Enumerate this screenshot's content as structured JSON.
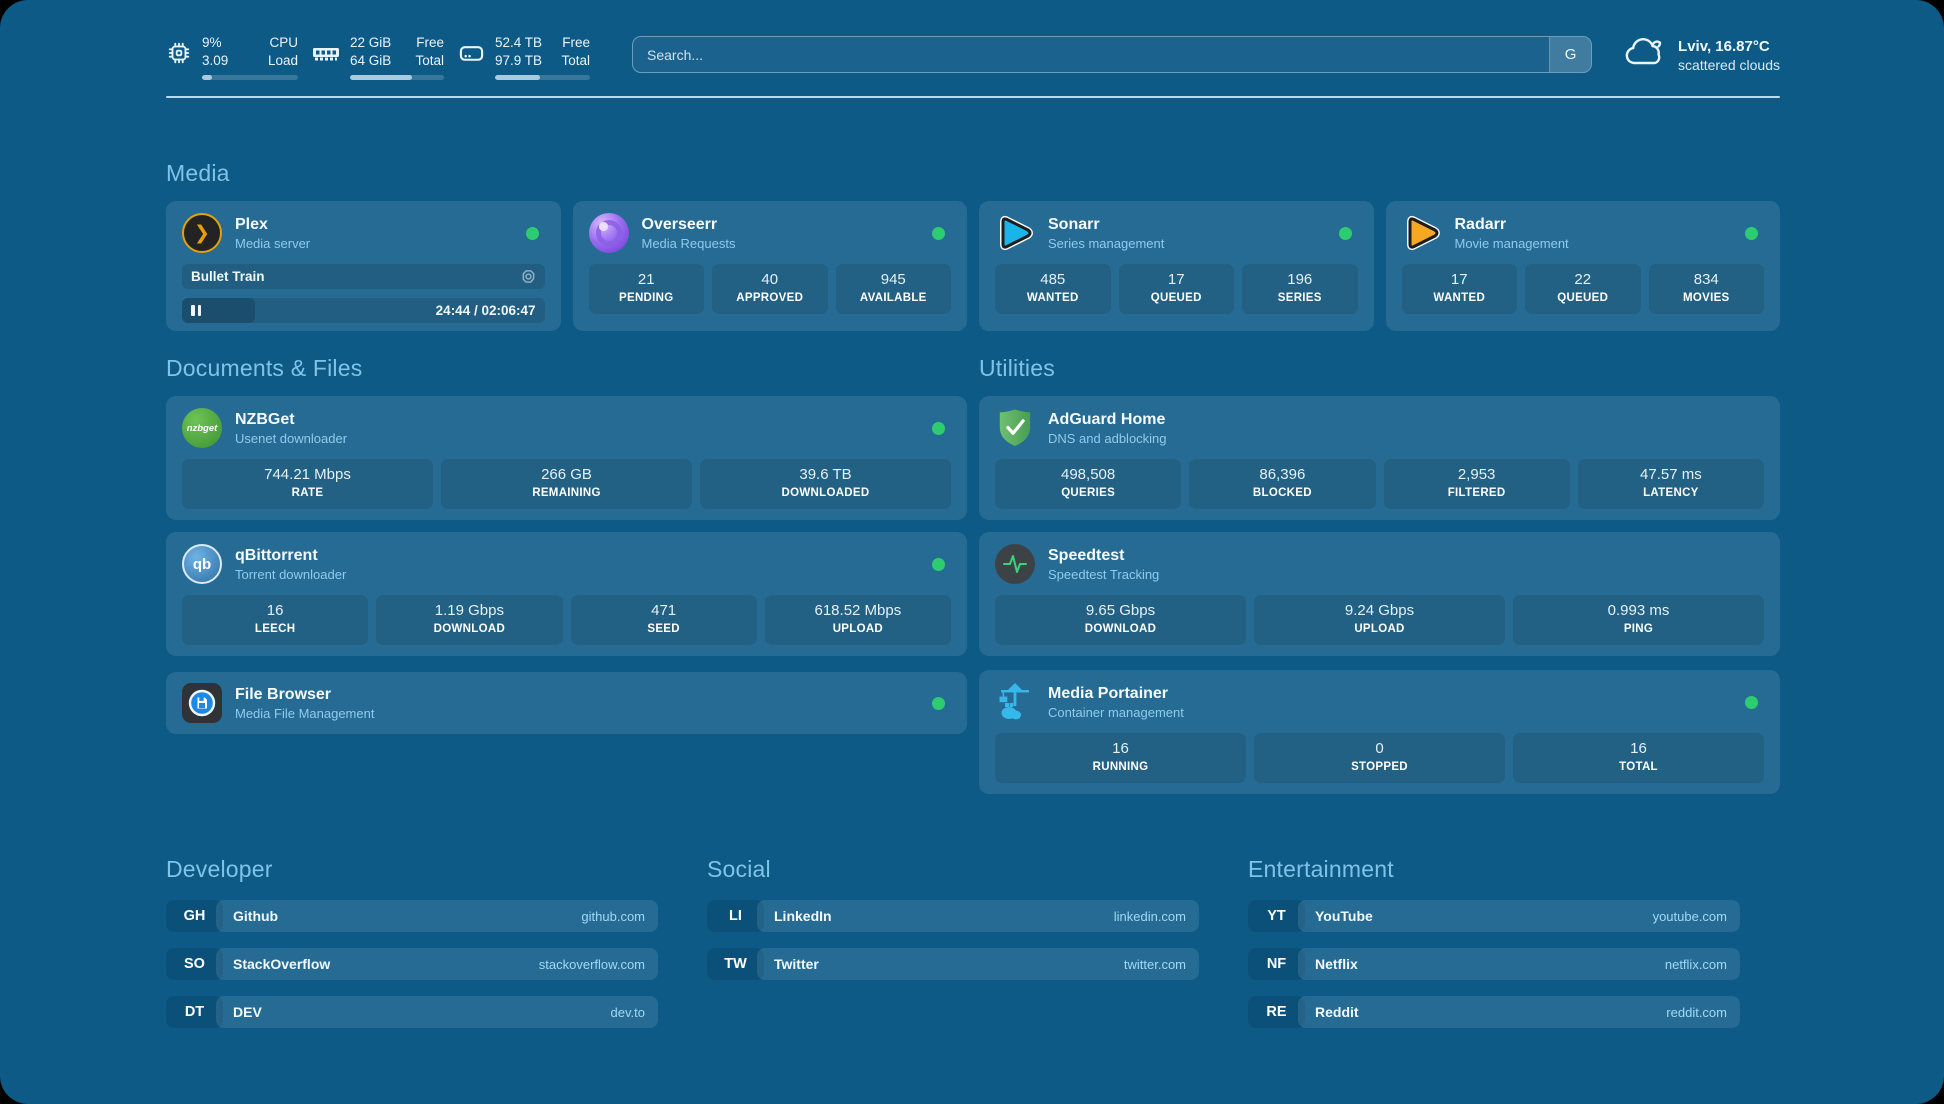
{
  "app": {
    "background_color": "#0d5a87",
    "accent_green": "#2ecc71",
    "section_title_color": "#7fc3e9"
  },
  "header": {
    "cpu": {
      "icon": "cpu-icon",
      "value_top": "9%",
      "value_bottom": "3.09",
      "label_top": "CPU",
      "label_bottom": "Load",
      "progress_pct": 10
    },
    "memory": {
      "icon": "memory-icon",
      "value_top": "22 GiB",
      "value_bottom": "64 GiB",
      "label_top": "Free",
      "label_bottom": "Total",
      "progress_pct": 66
    },
    "disk": {
      "icon": "disk-icon",
      "value_top": "52.4 TB",
      "value_bottom": "97.9 TB",
      "label_top": "Free",
      "label_bottom": "Total",
      "progress_pct": 47
    },
    "search": {
      "placeholder": "Search...",
      "button_label": "G"
    },
    "weather": {
      "icon": "cloud-icon",
      "location": "Lviv, 16.87°C",
      "condition": "scattered clouds"
    }
  },
  "sections": {
    "media": "Media",
    "documents": "Documents & Files",
    "utilities": "Utilities",
    "developer": "Developer",
    "social": "Social",
    "entertainment": "Entertainment"
  },
  "services": {
    "plex": {
      "icon": "plex-icon",
      "title": "Plex",
      "subtitle": "Media server",
      "online": true,
      "now_playing": "Bullet Train",
      "state": "paused",
      "elapsed": "24:44",
      "duration": "02:06:47",
      "time_display": "24:44 / 02:06:47",
      "progress_pct": 20
    },
    "overseerr": {
      "icon": "overseerr-icon",
      "title": "Overseerr",
      "subtitle": "Media Requests",
      "online": true,
      "stats": [
        {
          "value": "21",
          "label": "PENDING"
        },
        {
          "value": "40",
          "label": "APPROVED"
        },
        {
          "value": "945",
          "label": "AVAILABLE"
        }
      ]
    },
    "sonarr": {
      "icon": "sonarr-icon",
      "title": "Sonarr",
      "subtitle": "Series management",
      "online": true,
      "stats": [
        {
          "value": "485",
          "label": "WANTED"
        },
        {
          "value": "17",
          "label": "QUEUED"
        },
        {
          "value": "196",
          "label": "SERIES"
        }
      ]
    },
    "radarr": {
      "icon": "radarr-icon",
      "title": "Radarr",
      "subtitle": "Movie management",
      "online": true,
      "stats": [
        {
          "value": "17",
          "label": "WANTED"
        },
        {
          "value": "22",
          "label": "QUEUED"
        },
        {
          "value": "834",
          "label": "MOVIES"
        }
      ]
    },
    "nzbget": {
      "icon": "nzbget-icon",
      "icon_text": "nzbget",
      "title": "NZBGet",
      "subtitle": "Usenet downloader",
      "online": true,
      "stats": [
        {
          "value": "744.21 Mbps",
          "label": "RATE"
        },
        {
          "value": "266 GB",
          "label": "REMAINING"
        },
        {
          "value": "39.6 TB",
          "label": "DOWNLOADED"
        }
      ]
    },
    "qbittorrent": {
      "icon": "qbittorrent-icon",
      "icon_text": "qb",
      "title": "qBittorrent",
      "subtitle": "Torrent downloader",
      "online": true,
      "stats": [
        {
          "value": "16",
          "label": "LEECH"
        },
        {
          "value": "1.19 Gbps",
          "label": "DOWNLOAD"
        },
        {
          "value": "471",
          "label": "SEED"
        },
        {
          "value": "618.52 Mbps",
          "label": "UPLOAD"
        }
      ]
    },
    "filebrowser": {
      "icon": "filebrowser-icon",
      "title": "File Browser",
      "subtitle": "Media File Management",
      "online": true
    },
    "adguard": {
      "icon": "adguard-icon",
      "title": "AdGuard Home",
      "subtitle": "DNS and adblocking",
      "online": false,
      "stats": [
        {
          "value": "498,508",
          "label": "QUERIES"
        },
        {
          "value": "86,396",
          "label": "BLOCKED"
        },
        {
          "value": "2,953",
          "label": "FILTERED"
        },
        {
          "value": "47.57 ms",
          "label": "LATENCY"
        }
      ]
    },
    "speedtest": {
      "icon": "speedtest-icon",
      "title": "Speedtest",
      "subtitle": "Speedtest Tracking",
      "online": false,
      "stats": [
        {
          "value": "9.65 Gbps",
          "label": "DOWNLOAD"
        },
        {
          "value": "9.24 Gbps",
          "label": "UPLOAD"
        },
        {
          "value": "0.993 ms",
          "label": "PING"
        }
      ]
    },
    "portainer": {
      "icon": "portainer-icon",
      "title": "Media Portainer",
      "subtitle": "Container management",
      "online": true,
      "stats": [
        {
          "value": "16",
          "label": "RUNNING"
        },
        {
          "value": "0",
          "label": "STOPPED"
        },
        {
          "value": "16",
          "label": "TOTAL"
        }
      ]
    }
  },
  "links": {
    "developer": [
      {
        "abbr": "GH",
        "name": "Github",
        "url": "github.com"
      },
      {
        "abbr": "SO",
        "name": "StackOverflow",
        "url": "stackoverflow.com"
      },
      {
        "abbr": "DT",
        "name": "DEV",
        "url": "dev.to"
      }
    ],
    "social": [
      {
        "abbr": "LI",
        "name": "LinkedIn",
        "url": "linkedin.com"
      },
      {
        "abbr": "TW",
        "name": "Twitter",
        "url": "twitter.com"
      }
    ],
    "entertainment": [
      {
        "abbr": "YT",
        "name": "YouTube",
        "url": "youtube.com"
      },
      {
        "abbr": "NF",
        "name": "Netflix",
        "url": "netflix.com"
      },
      {
        "abbr": "RE",
        "name": "Reddit",
        "url": "reddit.com"
      }
    ]
  }
}
